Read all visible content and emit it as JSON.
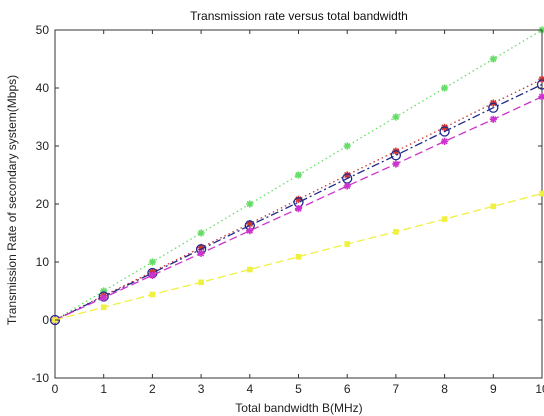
{
  "chart_data": {
    "type": "line",
    "title": "Transmission rate versus total bandwidth",
    "xlabel": "Total bandwidth B(MHz)",
    "ylabel": "Transmission Rate of secondary system(Mbps)",
    "xlim": [
      0,
      10
    ],
    "ylim": [
      -10,
      50
    ],
    "xticks": [
      0,
      1,
      2,
      3,
      4,
      5,
      6,
      7,
      8,
      9,
      10
    ],
    "yticks": [
      -10,
      0,
      10,
      20,
      30,
      40,
      50
    ],
    "grid": true,
    "x": [
      0,
      1,
      2,
      3,
      4,
      5,
      6,
      7,
      8,
      9,
      10
    ],
    "series": [
      {
        "values": [
          0,
          5,
          10,
          15,
          20,
          25,
          30,
          35,
          40,
          45,
          50
        ],
        "color": "#66dd66",
        "marker": "star",
        "line": "dotted"
      },
      {
        "values": [
          0,
          4.2,
          8.3,
          12.5,
          16.6,
          20.8,
          25,
          29.1,
          33.2,
          37.4,
          41.5
        ],
        "color": "#cc3333",
        "marker": "star",
        "line": "dotted"
      },
      {
        "values": [
          0,
          4.05,
          8.1,
          12.2,
          16.3,
          20.3,
          24.4,
          28.4,
          32.5,
          36.6,
          40.6
        ],
        "color": "#1f2a8a",
        "marker": "circle",
        "line": "dashdot"
      },
      {
        "values": [
          0,
          3.85,
          7.7,
          11.5,
          15.4,
          19.2,
          23.1,
          26.9,
          30.8,
          34.6,
          38.5
        ],
        "color": "#cc33cc",
        "marker": "star",
        "line": "dashed"
      },
      {
        "values": [
          0,
          2.2,
          4.4,
          6.5,
          8.7,
          10.9,
          13.1,
          15.2,
          17.4,
          19.6,
          21.8
        ],
        "color": "#f0f040",
        "marker": "square",
        "line": "dashed"
      }
    ]
  }
}
